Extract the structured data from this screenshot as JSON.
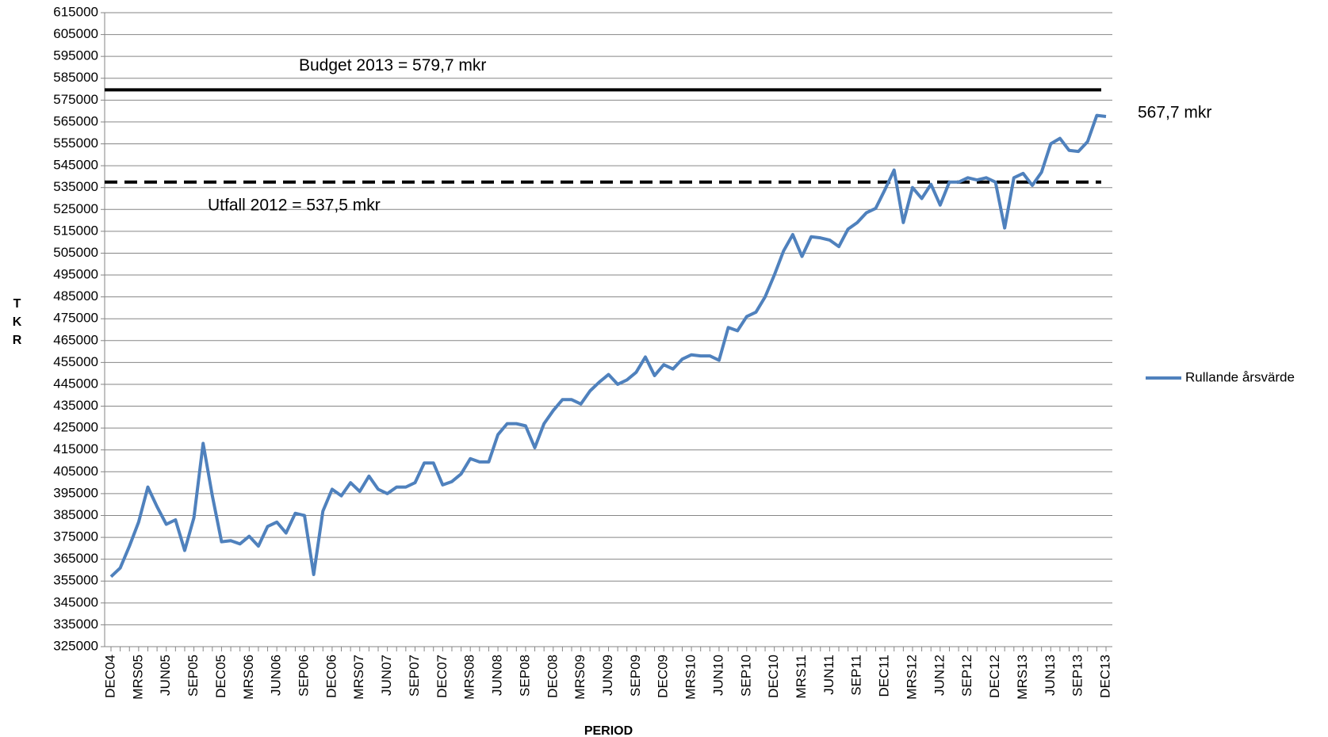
{
  "chart_data": {
    "type": "line",
    "x_label": "PERIOD",
    "y_label": "TKR",
    "categories": [
      "DEC04",
      null,
      null,
      "MRS05",
      null,
      null,
      "JUN05",
      null,
      null,
      "SEP05",
      null,
      null,
      "DEC05",
      null,
      null,
      "MRS06",
      null,
      null,
      "JUN06",
      null,
      null,
      "SEP06",
      null,
      null,
      "DEC06",
      null,
      null,
      "MRS07",
      null,
      null,
      "JUN07",
      null,
      null,
      "SEP07",
      null,
      null,
      "DEC07",
      null,
      null,
      "MRS08",
      null,
      null,
      "JUN08",
      null,
      null,
      "SEP08",
      null,
      null,
      "DEC08",
      null,
      null,
      "MRS09",
      null,
      null,
      "JUN09",
      null,
      null,
      "SEP09",
      null,
      null,
      "DEC09",
      null,
      null,
      "MRS10",
      null,
      null,
      "JUN10",
      null,
      null,
      "SEP10",
      null,
      null,
      "DEC10",
      null,
      null,
      "MRS11",
      null,
      null,
      "JUN11",
      null,
      null,
      "SEP11",
      null,
      null,
      "DEC11",
      null,
      null,
      "MRS12",
      null,
      null,
      "JUN12",
      null,
      null,
      "SEP12",
      null,
      null,
      "DEC12",
      null,
      null,
      "MRS13",
      null,
      null,
      "JUN13",
      null,
      null,
      "SEP13",
      null,
      null,
      "DEC13"
    ],
    "series": [
      {
        "name": "Rullande årsvärde",
        "color": "#4f81bd",
        "values": [
          357000,
          361000,
          371000,
          382000,
          398000,
          389000,
          381000,
          383000,
          369000,
          384000,
          418000,
          394000,
          373000,
          373500,
          372000,
          375500,
          371000,
          380000,
          382000,
          377000,
          386000,
          385000,
          358000,
          387000,
          397000,
          394000,
          400000,
          396000,
          403000,
          397000,
          395000,
          398000,
          398000,
          400000,
          409000,
          409000,
          399000,
          400500,
          404000,
          411000,
          409500,
          409500,
          422000,
          427000,
          427000,
          426000,
          416000,
          427000,
          433000,
          438000,
          438000,
          436000,
          442000,
          446000,
          449500,
          445000,
          447000,
          450500,
          457500,
          449000,
          454000,
          452000,
          456500,
          458500,
          458000,
          458000,
          456000,
          471000,
          469500,
          476000,
          478000,
          485000,
          495000,
          506000,
          513500,
          503500,
          512500,
          512000,
          511000,
          508000,
          516000,
          519000,
          523500,
          525500,
          534000,
          543000,
          519000,
          535000,
          530000,
          536500,
          527000,
          537500,
          537500,
          539500,
          538500,
          539500,
          537500,
          516500,
          539500,
          541500,
          536000,
          542000,
          555000,
          557500,
          552000,
          551500,
          556000,
          568000,
          567500
        ]
      }
    ],
    "reference_lines": [
      {
        "label": "Budget 2013 =  579,7 mkr",
        "value": 579700,
        "color": "#000000",
        "style": "solid"
      },
      {
        "label": "Utfall 2012  =  537,5 mkr",
        "value": 537500,
        "color": "#000000",
        "style": "dashed"
      }
    ],
    "end_label": "567,7 mkr",
    "ylim": [
      325000,
      615000
    ],
    "yticks": [
      325000,
      335000,
      345000,
      355000,
      365000,
      375000,
      385000,
      395000,
      405000,
      415000,
      425000,
      435000,
      445000,
      455000,
      465000,
      475000,
      485000,
      495000,
      505000,
      515000,
      525000,
      535000,
      545000,
      555000,
      565000,
      575000,
      585000,
      595000,
      605000,
      615000
    ],
    "grid": true,
    "legend": "right"
  }
}
